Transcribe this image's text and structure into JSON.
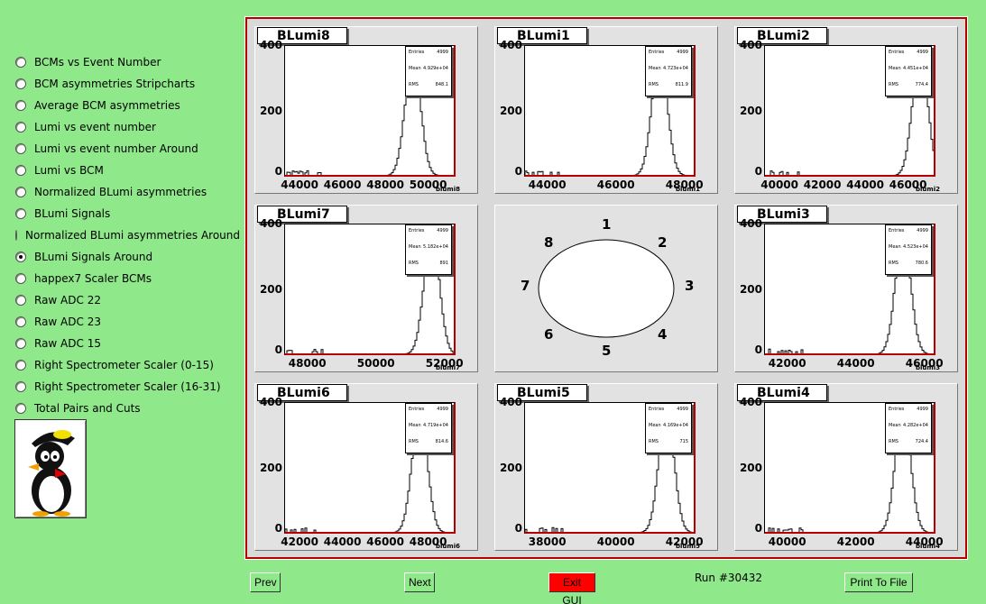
{
  "menu": {
    "items": [
      {
        "label": "BCMs vs Event Number",
        "selected": false
      },
      {
        "label": "BCM asymmetries Stripcharts",
        "selected": false
      },
      {
        "label": "Average BCM asymmetries",
        "selected": false
      },
      {
        "label": "Lumi vs event number",
        "selected": false
      },
      {
        "label": "Lumi vs event number Around",
        "selected": false
      },
      {
        "label": "Lumi vs BCM",
        "selected": false
      },
      {
        "label": "Normalized BLumi asymmetries",
        "selected": false
      },
      {
        "label": "BLumi Signals",
        "selected": false
      },
      {
        "label": "Normalized BLumi asymmetries Around",
        "selected": false
      },
      {
        "label": "BLumi Signals Around",
        "selected": true
      },
      {
        "label": "happex7 Scaler BCMs",
        "selected": false
      },
      {
        "label": "Raw ADC 22",
        "selected": false
      },
      {
        "label": "Raw ADC 23",
        "selected": false
      },
      {
        "label": "Raw ADC 15",
        "selected": false
      },
      {
        "label": "Right Spectrometer Scaler (0-15)",
        "selected": false
      },
      {
        "label": "Right Spectrometer Scaler (16-31)",
        "selected": false
      },
      {
        "label": "Total Pairs and Cuts",
        "selected": false
      }
    ]
  },
  "stats_labels": {
    "entries": "Entries",
    "mean": "Mean",
    "rms": "RMS"
  },
  "y_ticks": [
    "400",
    "200",
    "0"
  ],
  "pads": [
    {
      "title": "BLumi8",
      "xname": "blumi8",
      "entries": "4999",
      "mean": "4.929e+04",
      "rms": "848.1",
      "xticks": [
        "44000",
        "46000",
        "48000",
        "50000"
      ],
      "peak": 0.74
    },
    {
      "title": "BLumi1",
      "xname": "blumi1",
      "entries": "4999",
      "mean": "4.723e+04",
      "rms": "811.9",
      "xticks": [
        "44000",
        "46000",
        "48000"
      ],
      "peak": 0.78
    },
    {
      "title": "BLumi2",
      "xname": "blumi2",
      "entries": "4999",
      "mean": "4.451e+04",
      "rms": "774.4",
      "xticks": [
        "40000",
        "42000",
        "44000",
        "46000"
      ],
      "peak": 0.9
    },
    {
      "title": "BLumi7",
      "xname": "blumi7",
      "entries": "4999",
      "mean": "5.182e+04",
      "rms": "891",
      "xticks": [
        "48000",
        "50000",
        "52000"
      ],
      "peak": 0.85
    },
    {
      "title": "BLumi3",
      "xname": "blumi3",
      "entries": "4999",
      "mean": "4.523e+04",
      "rms": "780.6",
      "xticks": [
        "42000",
        "44000",
        "46000"
      ],
      "peak": 0.8
    },
    {
      "title": "BLumi6",
      "xname": "blumi6",
      "entries": "4999",
      "mean": "4.719e+04",
      "rms": "814.6",
      "xticks": [
        "42000",
        "44000",
        "46000",
        "48000"
      ],
      "peak": 0.78
    },
    {
      "title": "BLumi5",
      "xname": "blumi5",
      "entries": "4999",
      "mean": "4.169e+04",
      "rms": "715",
      "xticks": [
        "38000",
        "40000",
        "42000"
      ],
      "peak": 0.82
    },
    {
      "title": "BLumi4",
      "xname": "blumi4",
      "entries": "4999",
      "mean": "4.282e+04",
      "rms": "724.4",
      "xticks": [
        "40000",
        "42000",
        "44000"
      ],
      "peak": 0.8
    }
  ],
  "diagram": {
    "labels": [
      "1",
      "2",
      "3",
      "4",
      "5",
      "6",
      "7",
      "8"
    ]
  },
  "buttons": {
    "prev": "Prev",
    "next": "Next",
    "exit": "Exit GUI",
    "print": "Print To File"
  },
  "status": {
    "run": "Run #30432"
  },
  "colors": {
    "background": "#8fe88a",
    "frame_border": "#b40000",
    "exit_button": "#ff0000"
  }
}
